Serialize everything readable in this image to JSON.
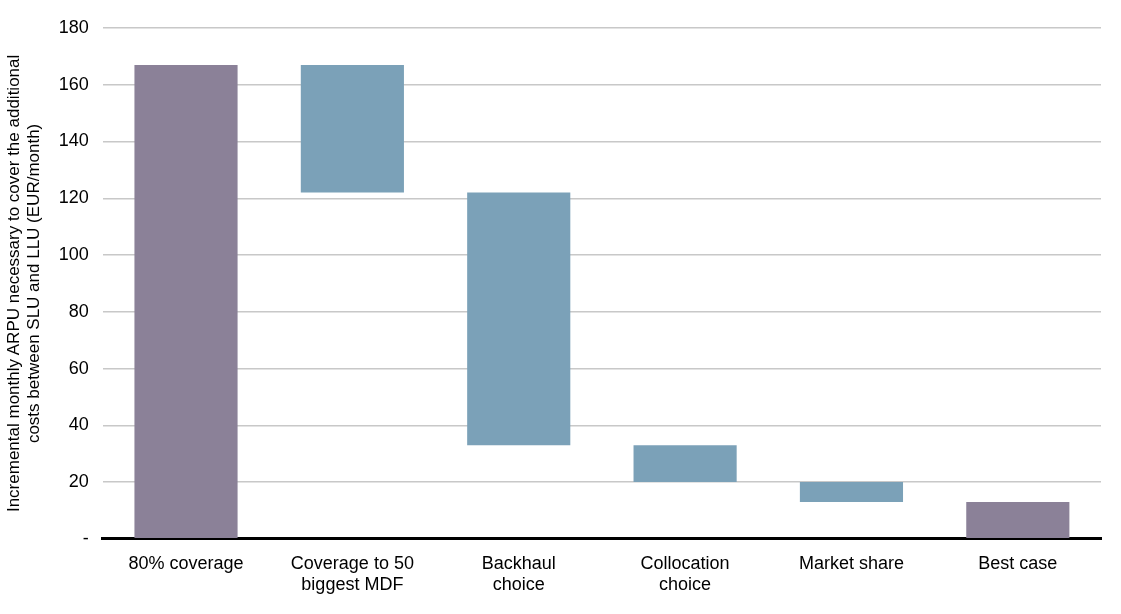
{
  "chart_data": {
    "type": "bar",
    "ylabel": "Incremental monthly ARPU necessary to cover the additional costs between SLU and LLU (EUR/month)",
    "categories": [
      "80% coverage",
      "Coverage to 50 biggest MDF",
      "Backhaul choice",
      "Collocation choice",
      "Market share",
      "Best case"
    ],
    "values": [
      167,
      45,
      89,
      13,
      7,
      13
    ],
    "base": [
      0,
      122,
      33,
      20,
      13,
      0
    ],
    "colors": [
      "#8b8198",
      "#7ba1b8",
      "#7ba1b8",
      "#7ba1b8",
      "#7ba1b8",
      "#8b8198"
    ],
    "ylim": [
      0,
      180
    ],
    "yticks": [
      {
        "value": 0,
        "label": "-"
      },
      20,
      40,
      60,
      80,
      100,
      120,
      140,
      160,
      180
    ],
    "grid": "y",
    "legend": false
  }
}
